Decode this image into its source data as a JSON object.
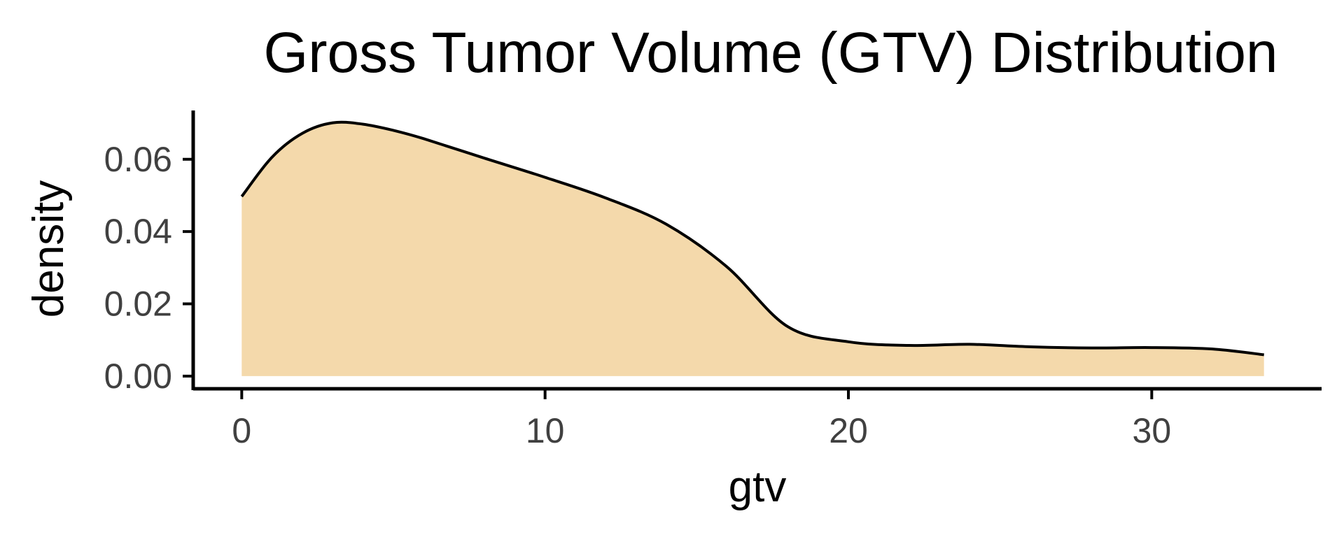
{
  "chart_data": {
    "type": "area",
    "title": "Gross Tumor Volume (GTV) Distribution",
    "xlabel": "gtv",
    "ylabel": "density",
    "xlim": [
      -1.6,
      35.6
    ],
    "ylim": [
      -0.0035,
      0.0735
    ],
    "x_ticks": [
      0,
      10,
      20,
      30
    ],
    "x_tick_labels": [
      "0",
      "10",
      "20",
      "30"
    ],
    "y_ticks": [
      0.0,
      0.02,
      0.04,
      0.06
    ],
    "y_tick_labels": [
      "0.00",
      "0.02",
      "0.04",
      "0.06"
    ],
    "grid": false,
    "legend": "none",
    "fill_color": "#F4D9AB",
    "line_color": "#000000",
    "series": [
      {
        "x": [
          0,
          1,
          2,
          3,
          4,
          5,
          6,
          8,
          10,
          12,
          14,
          16,
          18,
          20,
          22,
          24,
          26,
          28,
          30,
          32,
          33.7
        ],
        "y": [
          0.0497,
          0.0606,
          0.0672,
          0.0701,
          0.0697,
          0.068,
          0.0657,
          0.0603,
          0.055,
          0.0493,
          0.042,
          0.0302,
          0.0137,
          0.0095,
          0.0085,
          0.0088,
          0.0081,
          0.0078,
          0.0079,
          0.0075,
          0.0059
        ]
      }
    ]
  }
}
